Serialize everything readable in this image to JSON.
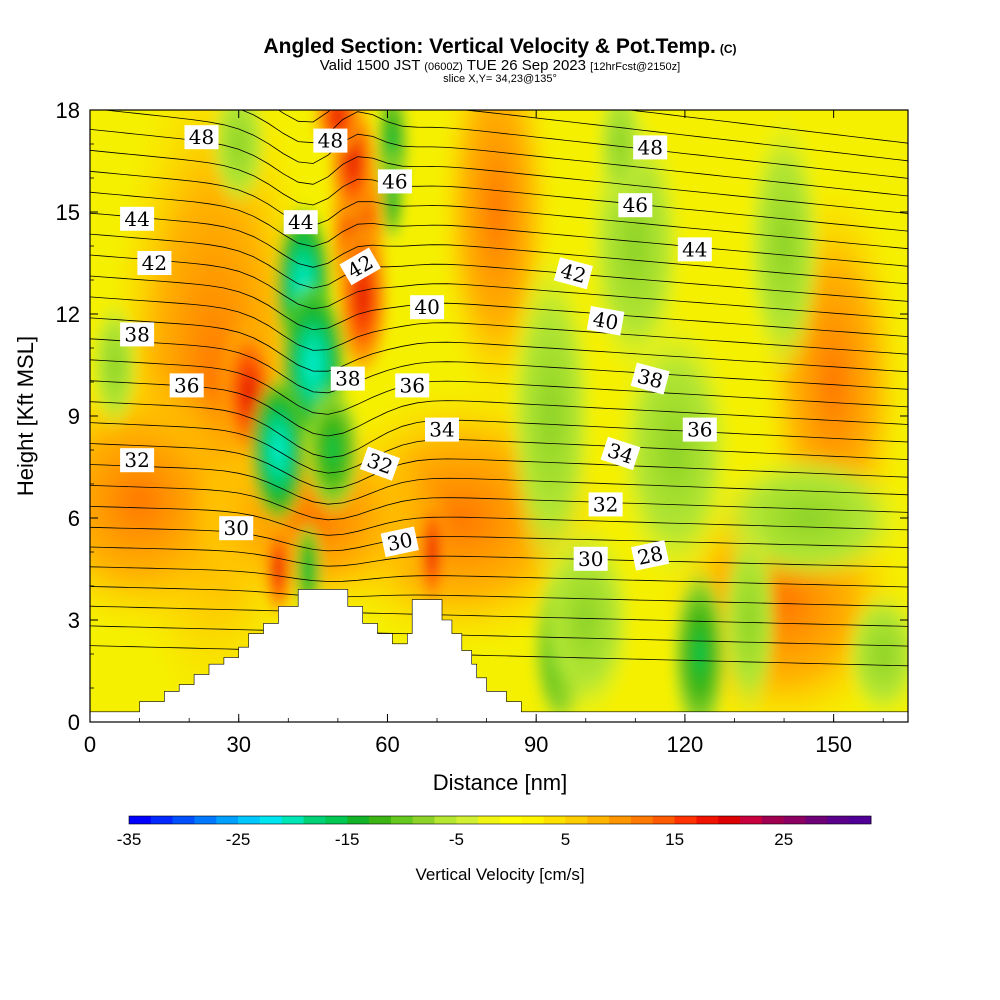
{
  "header": {
    "title": "Angled Section: Vertical Velocity & Pot.Temp.",
    "copyright": "(C)",
    "valid_main": "Valid 1500 JST",
    "valid_utc": "(0600Z)",
    "valid_date": "TUE 26 Sep 2023",
    "fcst": "[12hrFcst@2150z]",
    "slice": "slice X,Y= 34,23@135°"
  },
  "chart_data": {
    "type": "heatmap",
    "xlabel": "Distance [nm]",
    "ylabel": "Height [Kft MSL]",
    "xlim": [
      0,
      165
    ],
    "ylim": [
      0,
      18
    ],
    "xticks": [
      0,
      30,
      60,
      90,
      120,
      150
    ],
    "yticks": [
      0,
      3,
      6,
      9,
      12,
      15,
      18
    ],
    "colorbar": {
      "title": "Vertical Velocity [cm/s]",
      "range": [
        -35,
        33
      ],
      "step": 2,
      "tick_values": [
        -35,
        -25,
        -15,
        -5,
        5,
        15,
        25
      ],
      "tick_labels": [
        "-35",
        "-25",
        "-15",
        "-5",
        "5",
        "15",
        "25"
      ],
      "colors": [
        "#0000ff",
        "#0028ff",
        "#0050ff",
        "#0078ff",
        "#00a0ff",
        "#00c8ff",
        "#00e6f0",
        "#00e6b4",
        "#00d278",
        "#00c850",
        "#14b428",
        "#3cb414",
        "#64c81e",
        "#8cd228",
        "#b4e632",
        "#d2f032",
        "#f0f514",
        "#ffff00",
        "#fff500",
        "#ffe100",
        "#ffcd00",
        "#ffb400",
        "#ff9600",
        "#ff7800",
        "#ff5a00",
        "#ff3200",
        "#f01400",
        "#dc0000",
        "#c8003c",
        "#a00050",
        "#8c0064",
        "#6e0078",
        "#5a008c",
        "#500096"
      ]
    },
    "terrain_profile": [
      [
        0,
        0.3
      ],
      [
        10,
        0.3
      ],
      [
        10,
        0.6
      ],
      [
        15,
        0.6
      ],
      [
        15,
        0.9
      ],
      [
        18,
        0.9
      ],
      [
        18,
        1.1
      ],
      [
        21,
        1.1
      ],
      [
        21,
        1.4
      ],
      [
        24,
        1.4
      ],
      [
        24,
        1.7
      ],
      [
        27,
        1.7
      ],
      [
        27,
        1.9
      ],
      [
        30,
        1.9
      ],
      [
        30,
        2.2
      ],
      [
        32,
        2.2
      ],
      [
        32,
        2.6
      ],
      [
        35,
        2.6
      ],
      [
        35,
        2.9
      ],
      [
        38,
        2.9
      ],
      [
        38,
        3.4
      ],
      [
        42,
        3.4
      ],
      [
        42,
        3.9
      ],
      [
        46,
        3.9
      ],
      [
        46,
        3.9
      ],
      [
        52,
        3.9
      ],
      [
        52,
        3.4
      ],
      [
        55,
        3.4
      ],
      [
        55,
        2.9
      ],
      [
        58,
        2.9
      ],
      [
        58,
        2.6
      ],
      [
        61,
        2.6
      ],
      [
        61,
        2.3
      ],
      [
        64,
        2.3
      ],
      [
        64,
        2.6
      ],
      [
        65,
        2.6
      ],
      [
        65,
        3.6
      ],
      [
        71,
        3.6
      ],
      [
        71,
        3.0
      ],
      [
        73,
        3.0
      ],
      [
        73,
        2.6
      ],
      [
        75,
        2.6
      ],
      [
        75,
        2.1
      ],
      [
        77,
        2.1
      ],
      [
        77,
        1.7
      ],
      [
        78,
        1.7
      ],
      [
        78,
        1.3
      ],
      [
        80,
        1.3
      ],
      [
        80,
        0.9
      ],
      [
        84,
        0.9
      ],
      [
        84,
        0.6
      ],
      [
        87,
        0.6
      ],
      [
        87,
        0.3
      ],
      [
        165,
        0.3
      ]
    ],
    "theta_labels": [
      {
        "text": "48",
        "x": 22.5,
        "y": 17.2,
        "angle": 0
      },
      {
        "text": "48",
        "x": 48.5,
        "y": 17.1,
        "angle": 0
      },
      {
        "text": "48",
        "x": 113,
        "y": 16.9,
        "angle": 0
      },
      {
        "text": "46",
        "x": 61.5,
        "y": 15.9,
        "angle": 0
      },
      {
        "text": "46",
        "x": 110,
        "y": 15.2,
        "angle": 0
      },
      {
        "text": "44",
        "x": 9.5,
        "y": 14.8,
        "angle": 0
      },
      {
        "text": "44",
        "x": 42.5,
        "y": 14.7,
        "angle": 0
      },
      {
        "text": "44",
        "x": 122,
        "y": 13.9,
        "angle": 0
      },
      {
        "text": "42",
        "x": 13,
        "y": 13.5,
        "angle": 0
      },
      {
        "text": "42",
        "x": 54.5,
        "y": 13.4,
        "angle": -30
      },
      {
        "text": "42",
        "x": 97.5,
        "y": 13.2,
        "angle": 15
      },
      {
        "text": "40",
        "x": 68,
        "y": 12.2,
        "angle": 0
      },
      {
        "text": "40",
        "x": 104,
        "y": 11.8,
        "angle": 10
      },
      {
        "text": "38",
        "x": 9.5,
        "y": 11.4,
        "angle": 0
      },
      {
        "text": "38",
        "x": 52,
        "y": 10.1,
        "angle": 0
      },
      {
        "text": "38",
        "x": 113,
        "y": 10.1,
        "angle": 15
      },
      {
        "text": "36",
        "x": 19.5,
        "y": 9.9,
        "angle": 0
      },
      {
        "text": "36",
        "x": 65,
        "y": 9.9,
        "angle": 0
      },
      {
        "text": "36",
        "x": 123,
        "y": 8.6,
        "angle": 0
      },
      {
        "text": "34",
        "x": 71,
        "y": 8.6,
        "angle": 0
      },
      {
        "text": "34",
        "x": 107,
        "y": 7.9,
        "angle": 18
      },
      {
        "text": "32",
        "x": 9.5,
        "y": 7.7,
        "angle": 0
      },
      {
        "text": "32",
        "x": 58.5,
        "y": 7.6,
        "angle": 20
      },
      {
        "text": "32",
        "x": 104,
        "y": 6.4,
        "angle": 0
      },
      {
        "text": "30",
        "x": 29.5,
        "y": 5.7,
        "angle": 0
      },
      {
        "text": "30",
        "x": 62.5,
        "y": 5.3,
        "angle": -12
      },
      {
        "text": "30",
        "x": 101,
        "y": 4.8,
        "angle": 0
      },
      {
        "text": "28",
        "x": 113,
        "y": 4.9,
        "angle": -12
      }
    ]
  }
}
